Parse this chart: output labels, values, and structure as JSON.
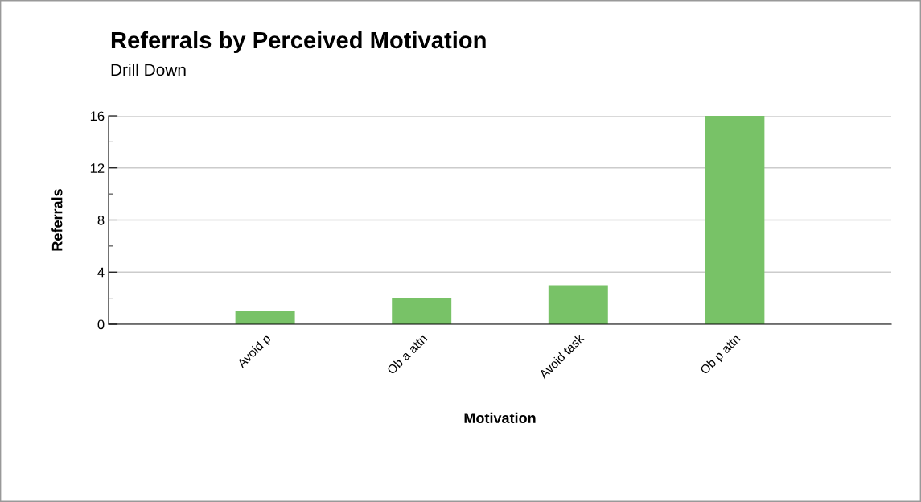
{
  "chart_data": {
    "type": "bar",
    "title": "Referrals by Perceived Motivation",
    "subtitle": "Drill Down",
    "xlabel": "Motivation",
    "ylabel": "Referrals",
    "categories": [
      "Avoid p",
      "Ob a attn",
      "Avoid task",
      "Ob p attn"
    ],
    "values": [
      1,
      2,
      3,
      16
    ],
    "color": "#78c267",
    "ylim": [
      0,
      16
    ],
    "yticks": [
      0,
      4,
      8,
      12,
      16
    ],
    "grid": "y"
  }
}
